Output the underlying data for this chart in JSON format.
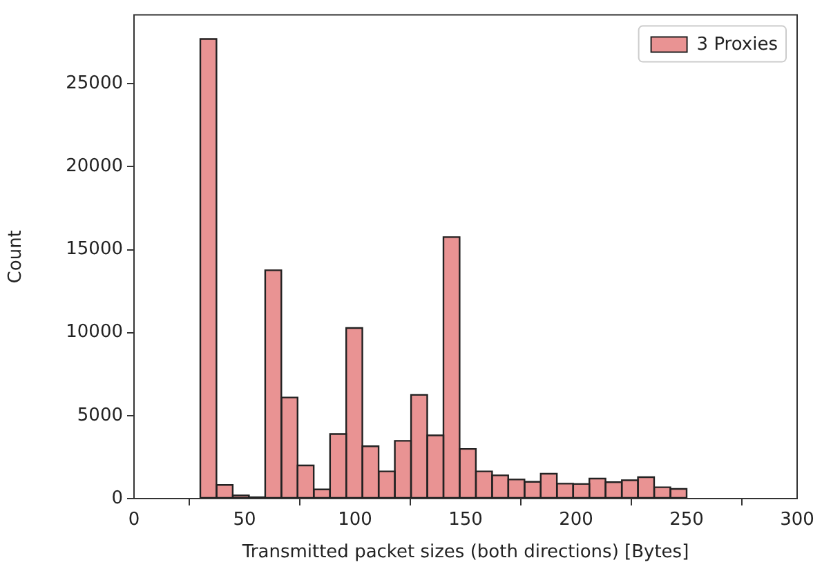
{
  "chart_data": {
    "type": "histogram",
    "xlabel": "Transmitted packet sizes (both directions) [Bytes]",
    "ylabel": "Count",
    "bins": [
      30,
      37.3,
      44.7,
      52,
      59.3,
      66.7,
      74,
      81.3,
      88.7,
      96,
      103.3,
      110.7,
      118,
      125.3,
      132.7,
      140,
      147.3,
      154.7,
      162,
      169.3,
      176.7,
      184,
      191.3,
      198.7,
      206,
      213.3,
      220.7,
      228,
      235.3,
      242.7,
      250
    ],
    "series": [
      {
        "name": "3 Proxies",
        "color": "#e99393",
        "values": [
          27700,
          820,
          190,
          80,
          13760,
          6090,
          2000,
          550,
          3890,
          10280,
          3150,
          1640,
          3480,
          6250,
          3810,
          15760,
          2990,
          1640,
          1400,
          1150,
          1010,
          1500,
          900,
          880,
          1210,
          990,
          1100,
          1290,
          680,
          580
        ]
      }
    ],
    "xlim": [
      0,
      300
    ],
    "xticks": [
      0,
      50,
      100,
      150,
      200,
      250,
      300
    ],
    "ylim": [
      0,
      29150
    ],
    "yticks": [
      0,
      5000,
      10000,
      15000,
      20000,
      25000
    ],
    "grid": false,
    "legend": "top right"
  }
}
